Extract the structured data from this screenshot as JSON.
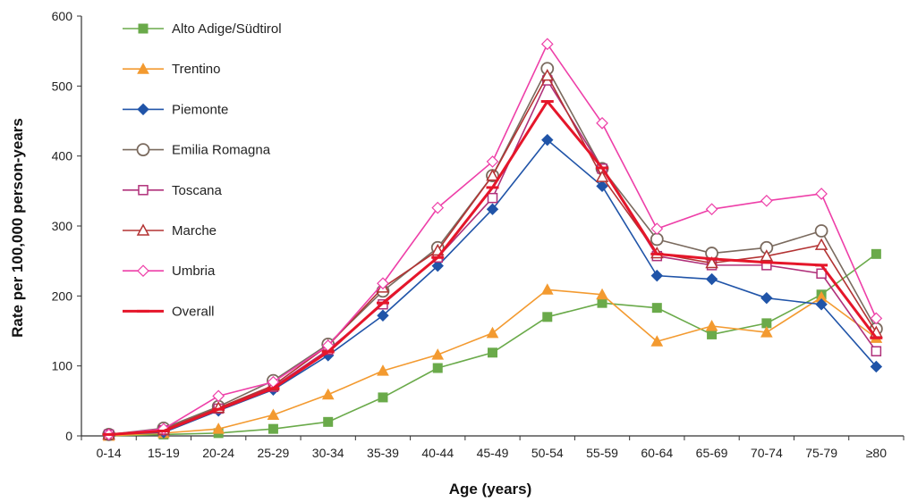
{
  "chart_data": {
    "type": "line",
    "title": "",
    "xlabel": "Age (years)",
    "ylabel": "Rate per 100,000 person-years",
    "categories": [
      "0-14",
      "15-19",
      "20-24",
      "25-29",
      "30-34",
      "35-39",
      "40-44",
      "45-49",
      "50-54",
      "55-59",
      "60-64",
      "65-69",
      "70-74",
      "75-79",
      "≥80"
    ],
    "ylim": [
      0,
      600
    ],
    "yticks": [
      0,
      100,
      200,
      300,
      400,
      500,
      600
    ],
    "grid": false,
    "legend_position": "top-left",
    "series": [
      {
        "name": "Alto Adige/Südtirol",
        "color": "#6aaa4a",
        "marker": "square-filled",
        "values": [
          0,
          2,
          4,
          10,
          20,
          55,
          97,
          119,
          170,
          190,
          183,
          145,
          161,
          202,
          260
        ]
      },
      {
        "name": "Trentino",
        "color": "#f39a30",
        "marker": "triangle-filled",
        "values": [
          0,
          4,
          10,
          30,
          59,
          93,
          116,
          147,
          209,
          202,
          135,
          157,
          148,
          198,
          140
        ]
      },
      {
        "name": "Piemonte",
        "color": "#2054a8",
        "marker": "diamond-filled",
        "values": [
          2,
          5,
          36,
          66,
          115,
          172,
          243,
          324,
          423,
          357,
          229,
          224,
          197,
          188,
          99
        ]
      },
      {
        "name": "Emilia Romagna",
        "color": "#7a6a5e",
        "marker": "circle-open",
        "values": [
          2,
          11,
          42,
          79,
          131,
          207,
          269,
          372,
          525,
          382,
          281,
          261,
          269,
          293,
          153
        ]
      },
      {
        "name": "Toscana",
        "color": "#b0307a",
        "marker": "square-open",
        "values": [
          2,
          8,
          39,
          70,
          123,
          188,
          255,
          340,
          508,
          382,
          257,
          244,
          244,
          232,
          121
        ]
      },
      {
        "name": "Marche",
        "color": "#b33333",
        "marker": "triangle-open",
        "values": [
          2,
          9,
          40,
          72,
          129,
          212,
          265,
          372,
          515,
          370,
          261,
          247,
          257,
          273,
          148
        ]
      },
      {
        "name": "Umbria",
        "color": "#ee3fa8",
        "marker": "diamond-open",
        "values": [
          2,
          10,
          57,
          77,
          129,
          218,
          326,
          392,
          560,
          447,
          296,
          324,
          336,
          346,
          168
        ]
      },
      {
        "name": "Overall",
        "color": "#e5162a",
        "marker": "dash",
        "width": 3,
        "values": [
          2,
          7,
          38,
          68,
          120,
          190,
          255,
          355,
          478,
          383,
          260,
          253,
          248,
          244,
          140
        ]
      }
    ]
  }
}
